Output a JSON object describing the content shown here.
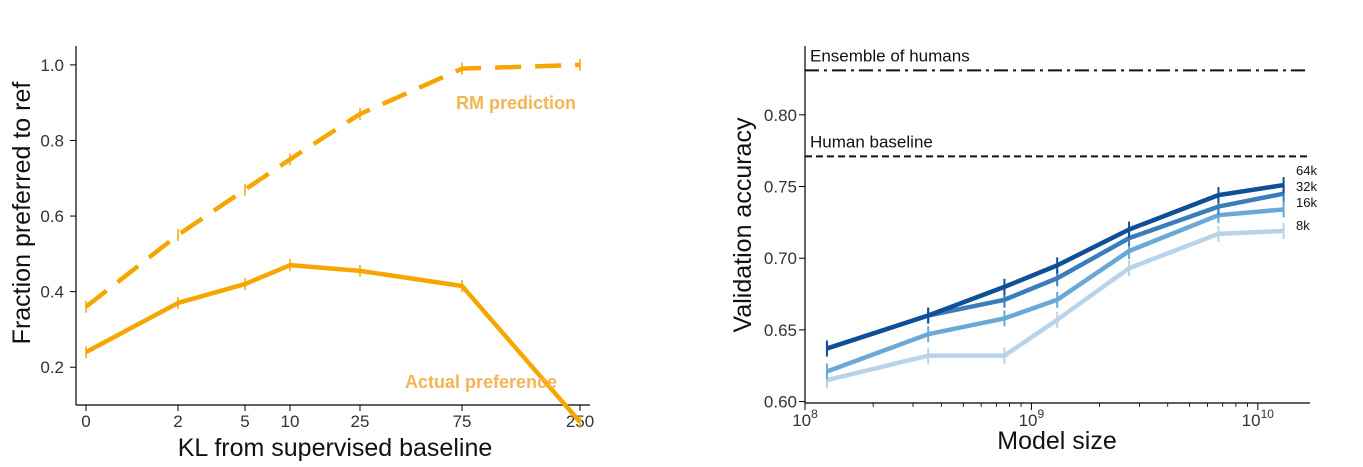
{
  "chart_data": [
    {
      "type": "line",
      "xlabel": "KL from supervised baseline",
      "ylabel": "Fraction preferred to ref",
      "x_tick_labels": [
        "0",
        "2",
        "5",
        "10",
        "25",
        "75",
        "250"
      ],
      "x_tick_values": [
        0,
        2,
        5,
        10,
        25,
        75,
        250
      ],
      "y_ticks": [
        "0.2",
        "0.4",
        "0.6",
        "0.8",
        "1.0"
      ],
      "y_tick_values": [
        0.2,
        0.4,
        0.6,
        0.8,
        1.0
      ],
      "ylim": [
        0.1,
        1.05
      ],
      "x_scale": "symlog",
      "grid": false,
      "series": [
        {
          "name": "RM prediction",
          "style": "dashed",
          "color": "#f5a700",
          "x": [
            0,
            2,
            5,
            10,
            25,
            75,
            250
          ],
          "y": [
            0.36,
            0.55,
            0.67,
            0.75,
            0.87,
            0.99,
            1.0
          ]
        },
        {
          "name": "Actual preference",
          "style": "solid",
          "color": "#f5a700",
          "x": [
            0,
            2,
            5,
            10,
            25,
            75,
            250
          ],
          "y": [
            0.24,
            0.37,
            0.42,
            0.47,
            0.455,
            0.415,
            0.055
          ]
        }
      ]
    },
    {
      "type": "line",
      "xlabel": "Model size",
      "ylabel": "Validation accuracy",
      "x_scale": "log",
      "xlim": [
        100000000,
        17000000000
      ],
      "x_tick_values": [
        100000000,
        1000000000,
        10000000000
      ],
      "x_tick_base": "10",
      "x_tick_exponents": [
        "8",
        "9",
        "10"
      ],
      "y_ticks": [
        "0.60",
        "0.65",
        "0.70",
        "0.75",
        "0.80"
      ],
      "y_tick_values": [
        0.6,
        0.65,
        0.7,
        0.75,
        0.8
      ],
      "ylim": [
        0.599,
        0.848
      ],
      "grid": false,
      "reference_lines": [
        {
          "label": "Ensemble of humans",
          "y": 0.831,
          "style": "dashdot"
        },
        {
          "label": "Human baseline",
          "y": 0.771,
          "style": "dashed"
        }
      ],
      "x": [
        125000000,
        350000000,
        760000000,
        1300000000,
        2700000000,
        6700000000,
        13000000000
      ],
      "series": [
        {
          "name": "64k",
          "color": "#0e4f96",
          "y": [
            0.637,
            0.66,
            0.68,
            0.695,
            0.72,
            0.744,
            0.751
          ]
        },
        {
          "name": "32k",
          "color": "#3a7dbb",
          "y": [
            0.637,
            0.66,
            0.671,
            0.686,
            0.714,
            0.736,
            0.745
          ]
        },
        {
          "name": "16k",
          "color": "#6aa9d6",
          "y": [
            0.621,
            0.647,
            0.658,
            0.671,
            0.705,
            0.73,
            0.734
          ]
        },
        {
          "name": "8k",
          "color": "#b9d3e8",
          "y": [
            0.615,
            0.632,
            0.632,
            0.657,
            0.693,
            0.717,
            0.719
          ]
        }
      ]
    }
  ]
}
